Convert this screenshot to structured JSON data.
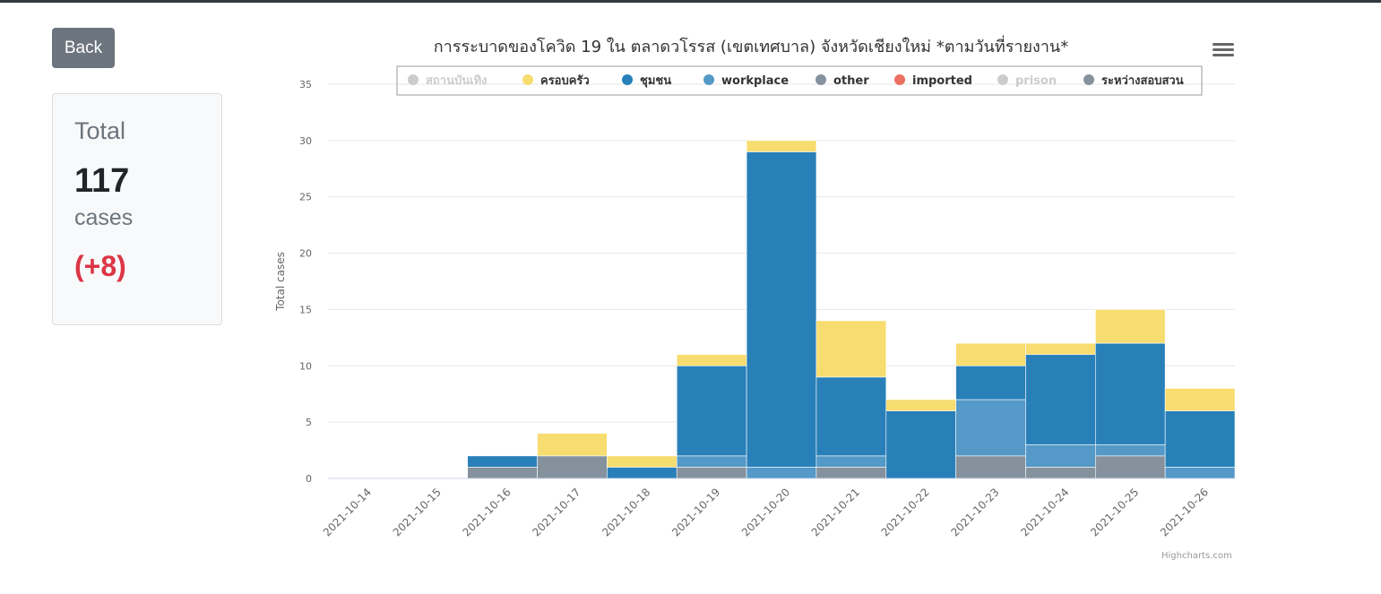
{
  "nav": {
    "back_label": "Back"
  },
  "summary": {
    "total_label": "Total",
    "total_value": "117",
    "cases_label": "cases",
    "delta": "(+8)"
  },
  "credit": "Highcharts.com",
  "chart_data": {
    "type": "bar",
    "stacked": true,
    "title": "การระบาดของโควิด 19 ใน ตลาดวโรรส (เขตเทศบาล) จังหวัดเชียงใหม่ *ตามวันที่รายงาน*",
    "xlabel": "",
    "ylabel": "Total cases",
    "ylim": [
      0,
      35
    ],
    "yticks": [
      0,
      5,
      10,
      15,
      20,
      25,
      30,
      35
    ],
    "grid": true,
    "legend_position": "top",
    "categories": [
      "2021-10-14",
      "2021-10-15",
      "2021-10-16",
      "2021-10-17",
      "2021-10-18",
      "2021-10-19",
      "2021-10-20",
      "2021-10-21",
      "2021-10-22",
      "2021-10-23",
      "2021-10-24",
      "2021-10-25",
      "2021-10-26"
    ],
    "series": [
      {
        "name": "สถานบันเทิง",
        "color": "#cccccc",
        "hidden": true,
        "values": [
          0,
          0,
          0,
          0,
          0,
          0,
          0,
          0,
          0,
          0,
          0,
          0,
          0
        ]
      },
      {
        "name": "ครอบครัว",
        "color": "#f7dc6f",
        "values": [
          0,
          0,
          0,
          2,
          1,
          1,
          1,
          5,
          1,
          2,
          1,
          3,
          2
        ]
      },
      {
        "name": "ชุมชน",
        "color": "#2980b9",
        "values": [
          0,
          0,
          1,
          0,
          1,
          8,
          28,
          7,
          6,
          3,
          8,
          9,
          5
        ]
      },
      {
        "name": "workplace",
        "color": "#5499c7",
        "values": [
          0,
          0,
          0,
          0,
          0,
          1,
          1,
          1,
          0,
          5,
          2,
          1,
          1
        ]
      },
      {
        "name": "other",
        "color": "#85929e",
        "values": [
          0,
          0,
          0,
          0,
          0,
          0,
          0,
          0,
          0,
          0,
          0,
          0,
          0
        ]
      },
      {
        "name": "imported",
        "color": "#ec7063",
        "values": [
          0,
          0,
          0,
          0,
          0,
          0,
          0,
          0,
          0,
          0,
          0,
          0,
          0
        ]
      },
      {
        "name": "prison",
        "color": "#cccccc",
        "hidden": true,
        "values": [
          0,
          0,
          0,
          0,
          0,
          0,
          0,
          0,
          0,
          0,
          0,
          0,
          0
        ]
      },
      {
        "name": "ระหว่างสอบสวน",
        "color": "#85929e",
        "values": [
          0,
          0,
          1,
          2,
          0,
          1,
          0,
          1,
          0,
          2,
          1,
          2,
          0
        ]
      }
    ]
  }
}
